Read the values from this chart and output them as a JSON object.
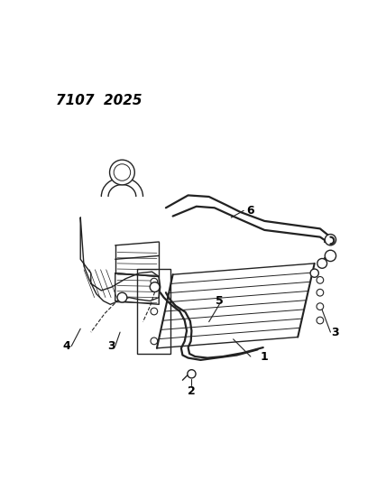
{
  "title": "7107  2025",
  "title_fontsize": 11,
  "bg_color": "#ffffff",
  "line_color": "#222222",
  "label_color": "#000000",
  "lw_main": 1.0,
  "lw_hose": 1.6,
  "lw_thin": 0.7
}
